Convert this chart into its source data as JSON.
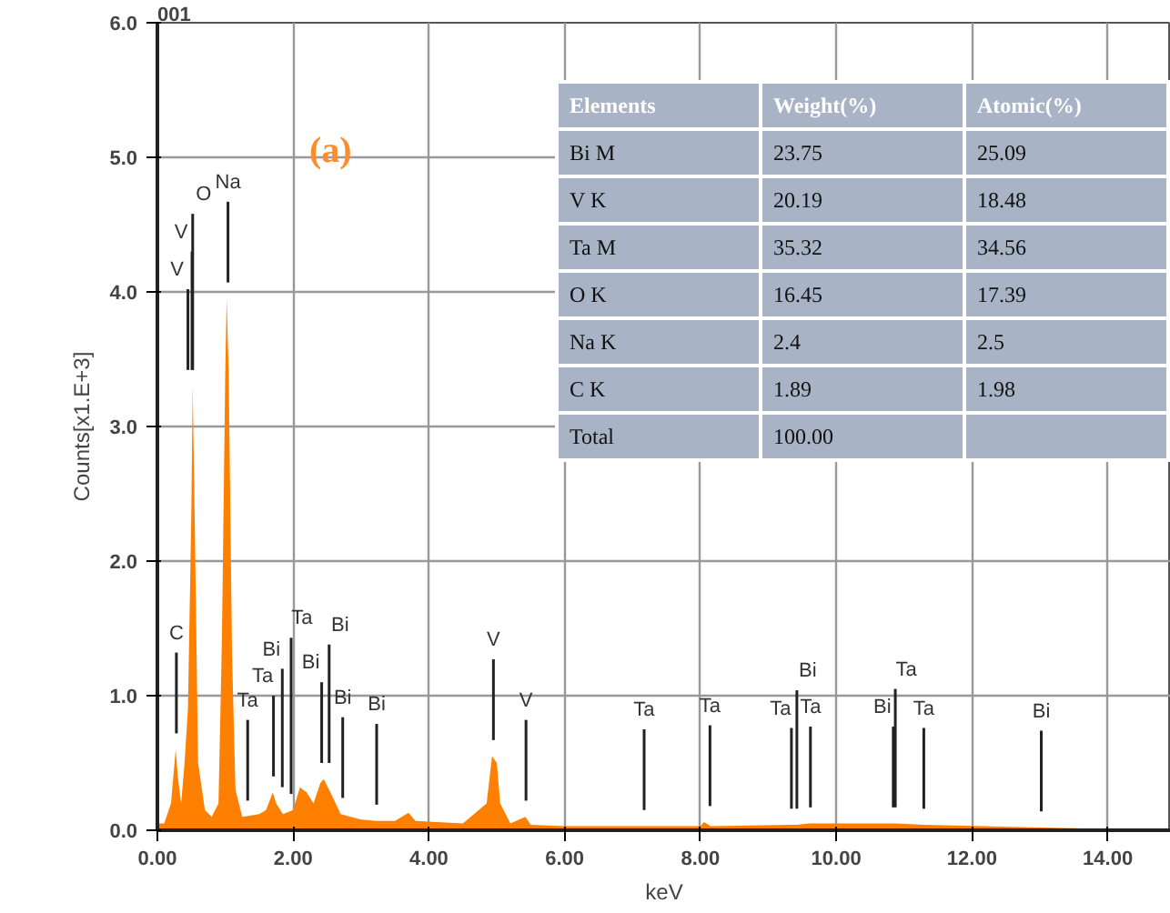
{
  "chart_data": {
    "type": "area",
    "xlabel": "keV",
    "ylabel": "Counts[x1.E+3]",
    "series": [
      {
        "color": "#ff8000",
        "x": [
          0,
          0.1,
          0.2,
          0.27,
          0.3,
          0.35,
          0.4,
          0.45,
          0.5,
          0.52,
          0.55,
          0.6,
          0.7,
          0.8,
          0.9,
          0.95,
          1.0,
          1.02,
          1.05,
          1.1,
          1.15,
          1.25,
          1.5,
          1.6,
          1.7,
          1.75,
          1.85,
          2.0,
          2.1,
          2.2,
          2.3,
          2.4,
          2.45,
          2.55,
          2.7,
          3.0,
          3.23,
          3.5,
          3.7,
          3.8,
          4.5,
          4.85,
          4.93,
          5.0,
          5.05,
          5.2,
          5.42,
          5.5,
          6.0,
          7.17,
          8.0,
          8.05,
          8.15,
          9.34,
          9.42,
          9.6,
          10.85,
          10.87,
          11.29,
          13.02,
          14.9
        ],
        "values": [
          0.05,
          0.05,
          0.2,
          0.6,
          0.4,
          0.2,
          0.5,
          0.9,
          2.35,
          3.3,
          2.3,
          0.5,
          0.15,
          0.1,
          0.2,
          1.4,
          3.4,
          3.95,
          3.4,
          1.3,
          0.3,
          0.1,
          0.12,
          0.15,
          0.28,
          0.2,
          0.12,
          0.15,
          0.32,
          0.28,
          0.2,
          0.35,
          0.38,
          0.28,
          0.12,
          0.08,
          0.07,
          0.07,
          0.13,
          0.07,
          0.05,
          0.2,
          0.55,
          0.5,
          0.2,
          0.05,
          0.1,
          0.04,
          0.03,
          0.03,
          0.03,
          0.06,
          0.03,
          0.04,
          0.04,
          0.05,
          0.05,
          0.05,
          0.04,
          0.02,
          0.0
        ]
      }
    ],
    "xlim": [
      0,
      14.93
    ],
    "ylim": [
      0,
      6.0
    ],
    "xticks": [
      {
        "value": 0,
        "label": "0.00"
      },
      {
        "value": 2,
        "label": "2.00"
      },
      {
        "value": 4,
        "label": "4.00"
      },
      {
        "value": 6,
        "label": "6.00"
      },
      {
        "value": 8,
        "label": "8.00"
      },
      {
        "value": 10,
        "label": "10.00"
      },
      {
        "value": 12,
        "label": "12.00"
      },
      {
        "value": 14,
        "label": "14.00"
      }
    ],
    "yticks": [
      {
        "value": 0,
        "label": "0.0"
      },
      {
        "value": 1,
        "label": "1.0"
      },
      {
        "value": 2,
        "label": "2.0"
      },
      {
        "value": 3,
        "label": "3.0"
      },
      {
        "value": 4,
        "label": "4.0"
      },
      {
        "value": 5,
        "label": "5.0"
      },
      {
        "value": 6,
        "label": "6.0"
      }
    ],
    "grid": true,
    "title": "001",
    "annotations": [
      "(a)",
      "Elements",
      "Weight(%)",
      "Atomic(%)",
      "Bi M",
      "23.75",
      "25.09",
      "V K",
      "20.19",
      "18.48",
      "Ta M",
      "35.32",
      "34.56",
      "O K",
      "16.45",
      "17.39",
      "Na K",
      "2.4",
      "2.5",
      "C K",
      "1.89",
      "1.98",
      "Total",
      "100.00",
      {
        "text": "Na",
        "x": 1.04
      },
      {
        "text": "V",
        "x": 0.51
      },
      {
        "text": "O",
        "x": 0.52
      },
      {
        "text": "C",
        "x": 0.28
      },
      {
        "text": "V",
        "x": 0.45
      },
      {
        "text": "Ta",
        "x": 1.33
      },
      {
        "text": "Ta",
        "x": 1.71
      },
      {
        "text": "Bi",
        "x": 1.84
      },
      {
        "text": "Ta",
        "x": 1.97
      },
      {
        "text": "Bi",
        "x": 2.42
      },
      {
        "text": "Bi",
        "x": 2.53
      },
      {
        "text": "Bi",
        "x": 2.73
      },
      {
        "text": "Bi",
        "x": 3.23
      },
      {
        "text": "V",
        "x": 4.95
      },
      {
        "text": "V",
        "x": 5.43
      },
      {
        "text": "Ta",
        "x": 7.17
      },
      {
        "text": "Ta",
        "x": 8.14
      },
      {
        "text": "Ta",
        "x": 9.34
      },
      {
        "text": "Bi",
        "x": 9.42
      },
      {
        "text": "Ta",
        "x": 9.62
      },
      {
        "text": "Bi",
        "x": 10.84
      },
      {
        "text": "Ta",
        "x": 10.87
      },
      {
        "text": "Ta",
        "x": 11.29
      },
      {
        "text": "Bi",
        "x": 13.02
      }
    ]
  }
}
